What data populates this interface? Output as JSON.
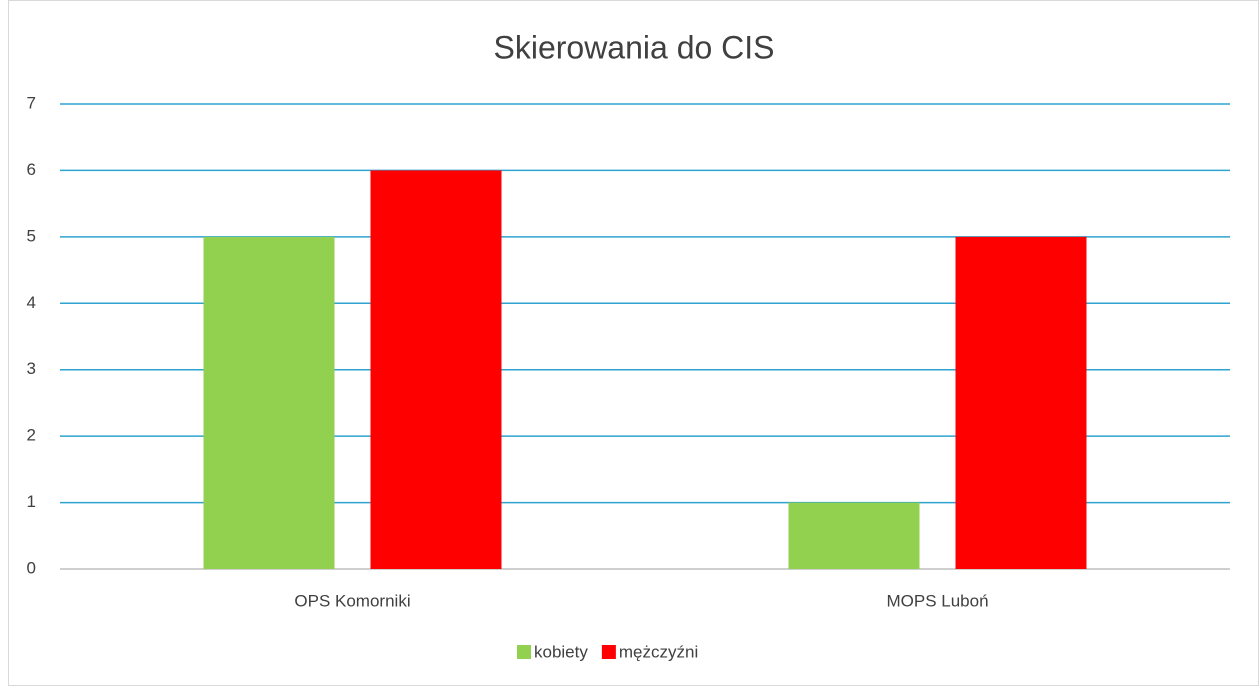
{
  "chart_data": {
    "type": "bar",
    "title": "Skierowania do CIS",
    "categories": [
      "OPS Komorniki",
      "MOPS Luboń"
    ],
    "series": [
      {
        "name": "kobiety",
        "color": "#92d050",
        "values": [
          5,
          1
        ]
      },
      {
        "name": "mężczyźni",
        "color": "#ff0000",
        "values": [
          6,
          5
        ]
      }
    ],
    "ylim": [
      0,
      7
    ],
    "yticks": [
      0,
      1,
      2,
      3,
      4,
      5,
      6,
      7
    ],
    "grid": true,
    "legend": "bottom"
  }
}
